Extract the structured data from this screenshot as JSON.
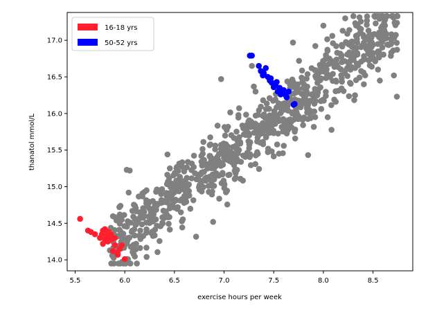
{
  "chart_data": {
    "type": "scatter",
    "title": "",
    "xlabel": "exercise hours per week",
    "ylabel": "thanatol mmol/L",
    "xlim": [
      5.42,
      8.9
    ],
    "ylim": [
      13.85,
      17.38
    ],
    "xticks": [
      5.5,
      6.0,
      6.5,
      7.0,
      7.5,
      8.0,
      8.5
    ],
    "xtick_labels": [
      "5.5",
      "6.0",
      "6.5",
      "7.0",
      "7.5",
      "8.0",
      "8.5"
    ],
    "yticks": [
      14.0,
      14.5,
      15.0,
      15.5,
      16.0,
      16.5,
      17.0
    ],
    "ytick_labels": [
      "14.0",
      "14.5",
      "15.0",
      "15.5",
      "16.0",
      "16.5",
      "17.0"
    ],
    "grid": false,
    "legend_position": "top-left",
    "colors": {
      "background": "#808080",
      "group1": "#ff1f2f",
      "group2": "#0000ff"
    },
    "series": [
      {
        "name": "16-18 yrs",
        "color": "#ff1f2f",
        "x": [
          5.55,
          5.63,
          5.66,
          5.7,
          5.75,
          5.77,
          5.78,
          5.8,
          5.8,
          5.82,
          5.83,
          5.85,
          5.86,
          5.88,
          5.9,
          5.9,
          5.92,
          5.95,
          5.97,
          6.0,
          5.78,
          5.84,
          5.87,
          5.93,
          5.81
        ],
        "y": [
          14.56,
          14.4,
          14.38,
          14.35,
          14.3,
          14.35,
          14.4,
          14.28,
          14.42,
          14.33,
          14.25,
          14.3,
          14.35,
          14.12,
          14.3,
          14.2,
          14.1,
          14.15,
          14.2,
          14.01,
          14.22,
          14.38,
          14.28,
          14.07,
          14.4
        ]
      },
      {
        "name": "50-52 yrs",
        "color": "#0000ff",
        "x": [
          7.26,
          7.28,
          7.35,
          7.37,
          7.39,
          7.42,
          7.44,
          7.46,
          7.48,
          7.5,
          7.52,
          7.54,
          7.56,
          7.58,
          7.6,
          7.62,
          7.65,
          7.7,
          7.71,
          7.4,
          7.47,
          7.53,
          7.57,
          7.63,
          7.5
        ],
        "y": [
          16.79,
          16.79,
          16.65,
          16.58,
          16.52,
          16.62,
          16.5,
          16.45,
          16.42,
          16.4,
          16.38,
          16.3,
          16.35,
          16.28,
          16.32,
          16.25,
          16.3,
          16.12,
          16.13,
          16.55,
          16.48,
          16.43,
          16.26,
          16.22,
          16.36
        ]
      },
      {
        "name": "",
        "color": "#808080",
        "generator": {
          "count": 900,
          "x_range": [
            5.85,
            8.75
          ],
          "slope": 1.06,
          "intercept": 7.97,
          "noise": 0.24,
          "seed": 17
        },
        "x": [
          5.85,
          5.95,
          6.02,
          6.22,
          6.05,
          6.43,
          6.9,
          6.97,
          7.17,
          7.28,
          7.45,
          8.0,
          8.09,
          8.22,
          8.33,
          8.38,
          8.55,
          8.71,
          8.74,
          7.15
        ],
        "y": [
          14.13,
          14.62,
          15.23,
          14.04,
          15.22,
          15.44,
          15.1,
          16.47,
          15.34,
          16.65,
          15.85,
          17.2,
          17.06,
          17.3,
          17.2,
          16.58,
          16.6,
          16.52,
          16.23,
          15.5
        ]
      }
    ]
  }
}
